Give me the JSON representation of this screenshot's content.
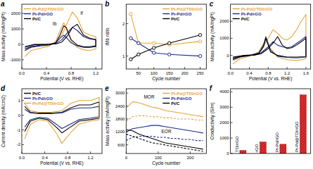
{
  "chart_data": [
    {
      "type": "line",
      "title": "a",
      "x_label": "Potential (V vs. RHE)",
      "y_label": "Mass activity (mA/mgPt)",
      "xlim": [
        0,
        1.3
      ],
      "xticks": [
        {
          "value": 0,
          "label": "0.0"
        },
        0.4,
        0.8,
        1.2
      ],
      "ylim": [
        -1600,
        2600
      ],
      "yticks": [
        -1000,
        0,
        1000,
        2000
      ],
      "legend": "upper left",
      "series": [
        {
          "name": "Pt-Pd@TDI/rGO",
          "color": "#e8a33a",
          "x": [
            0.05,
            0.2,
            0.4,
            0.55,
            0.65,
            0.75,
            0.82,
            0.9,
            1.0,
            1.1,
            1.2,
            1.2,
            1.1,
            1.0,
            0.9,
            0.8,
            0.72,
            0.68,
            0.62,
            0.55,
            0.45,
            0.3,
            0.15,
            0.05
          ],
          "values": [
            -400,
            -50,
            0,
            100,
            600,
            1500,
            2100,
            1700,
            800,
            600,
            500,
            -300,
            -400,
            -350,
            -200,
            200,
            1000,
            1400,
            900,
            200,
            -100,
            -250,
            -400,
            -800
          ]
        },
        {
          "name": "Pt-Pd/rGO",
          "color": "#1a2a8c",
          "x": [
            0.05,
            0.2,
            0.4,
            0.55,
            0.65,
            0.75,
            0.82,
            0.9,
            1.0,
            1.1,
            1.2,
            1.2,
            1.1,
            1.0,
            0.9,
            0.8,
            0.72,
            0.68,
            0.62,
            0.55,
            0.45,
            0.3,
            0.15,
            0.05
          ],
          "values": [
            -200,
            -20,
            0,
            50,
            300,
            800,
            1100,
            900,
            500,
            350,
            300,
            -150,
            -200,
            -200,
            -100,
            100,
            450,
            600,
            400,
            100,
            -50,
            -100,
            -200,
            -400
          ]
        },
        {
          "name": "Pt/C",
          "color": "#000000",
          "x": [
            0.05,
            0.2,
            0.4,
            0.55,
            0.65,
            0.75,
            0.82,
            0.9,
            1.0,
            1.1,
            1.2,
            1.2,
            1.1,
            1.0,
            0.9,
            0.8,
            0.72,
            0.68,
            0.62,
            0.55,
            0.45,
            0.3,
            0.15,
            0.05
          ],
          "values": [
            -150,
            0,
            0,
            20,
            150,
            600,
            1100,
            1300,
            600,
            400,
            300,
            -100,
            -150,
            -150,
            -50,
            300,
            1100,
            1200,
            600,
            100,
            0,
            -50,
            -150,
            -300
          ]
        }
      ],
      "annotations": [
        {
          "text": "If",
          "x": 0.95,
          "y": 1900
        },
        {
          "text": "Ib",
          "x": 0.5,
          "y": 1250
        }
      ]
    },
    {
      "type": "line",
      "title": "b",
      "x_label": "Cycle number",
      "y_label": "If/Ib ratio",
      "xlim": [
        10,
        270
      ],
      "xticks": [
        50,
        100,
        150,
        200,
        250
      ],
      "ylim": [
        0.6,
        2.6
      ],
      "yticks": [
        1,
        2
      ],
      "legend": "upper right",
      "marker": "circle",
      "series": [
        {
          "name": "Pt-Pd@TDI/rGO",
          "color": "#e8a33a",
          "x": [
            25,
            50,
            100,
            150,
            250
          ],
          "values": [
            2.3,
            1.4,
            1.4,
            1.35,
            1.45
          ]
        },
        {
          "name": "Pt-Pd/rGO",
          "color": "#1a2a8c",
          "x": [
            25,
            50,
            100,
            150,
            250
          ],
          "values": [
            1.55,
            1.4,
            1.1,
            1.05,
            1.0
          ]
        },
        {
          "name": "Pt/C",
          "color": "#000000",
          "x": [
            25,
            50,
            100,
            150,
            250
          ],
          "values": [
            0.9,
            1.05,
            1.25,
            1.4,
            1.65
          ]
        }
      ]
    },
    {
      "type": "line",
      "title": "c",
      "x_label": "Potential (V vs. RHE)",
      "y_label": "Mass activity (mA/mgPt)",
      "xlim": [
        0,
        1.7
      ],
      "xticks": [
        {
          "value": 0,
          "label": "0.0"
        },
        0.4,
        0.8,
        1.2,
        1.6
      ],
      "ylim": [
        -800,
        3000
      ],
      "yticks": [
        0,
        1000,
        2000
      ],
      "legend": "upper left",
      "series": [
        {
          "name": "Pt-Pd@TDI/rGO",
          "color": "#e8a33a",
          "x": [
            0.05,
            0.3,
            0.5,
            0.65,
            0.8,
            0.9,
            1.0,
            1.1,
            1.2,
            1.3,
            1.4,
            1.5,
            1.6,
            1.6,
            1.4,
            1.2,
            1.0,
            0.85,
            0.75,
            0.7,
            0.6,
            0.4,
            0.2,
            0.05
          ],
          "values": [
            -300,
            0,
            50,
            300,
            1000,
            1500,
            1300,
            1000,
            900,
            1100,
            1500,
            2000,
            2400,
            -200,
            -300,
            -250,
            -100,
            400,
            900,
            700,
            200,
            -50,
            -200,
            -500
          ]
        },
        {
          "name": "Pt-Pd/rGO",
          "color": "#1a2a8c",
          "x": [
            0.05,
            0.3,
            0.5,
            0.65,
            0.8,
            0.9,
            1.0,
            1.1,
            1.2,
            1.3,
            1.4,
            1.5,
            1.6,
            1.6,
            1.4,
            1.2,
            1.0,
            0.85,
            0.75,
            0.7,
            0.6,
            0.4,
            0.2,
            0.05
          ],
          "values": [
            -150,
            0,
            20,
            150,
            500,
            800,
            600,
            500,
            450,
            500,
            700,
            900,
            1100,
            -100,
            -150,
            -120,
            -50,
            300,
            1100,
            600,
            150,
            -20,
            -100,
            -250
          ]
        },
        {
          "name": "Pt/C",
          "color": "#000000",
          "x": [
            0.05,
            0.3,
            0.5,
            0.65,
            0.8,
            0.9,
            1.0,
            1.1,
            1.2,
            1.3,
            1.4,
            1.5,
            1.6,
            1.6,
            1.4,
            1.2,
            1.0,
            0.85,
            0.75,
            0.7,
            0.6,
            0.4,
            0.2,
            0.05
          ],
          "values": [
            -100,
            0,
            10,
            100,
            400,
            700,
            1100,
            600,
            400,
            450,
            600,
            800,
            1000,
            -80,
            -100,
            -100,
            0,
            200,
            1000,
            500,
            100,
            0,
            -80,
            -200
          ]
        }
      ]
    },
    {
      "type": "line",
      "title": "d",
      "x_label": "Potential (V vs. RHE)",
      "y_label": "Current density (mA/cm2)",
      "xlim": [
        0,
        1.4
      ],
      "xticks": [
        {
          "value": 0,
          "label": "0.0"
        },
        0.4,
        0.8,
        1.2
      ],
      "ylim": [
        -2.6,
        1.8
      ],
      "yticks": [
        -2,
        -1,
        0,
        1
      ],
      "legend": "upper left",
      "series": [
        {
          "name": "Pt/C",
          "color": "#000000",
          "x": [
            0.05,
            0.15,
            0.3,
            0.5,
            0.7,
            0.85,
            1.0,
            1.2,
            1.35,
            1.35,
            1.2,
            1.0,
            0.85,
            0.7,
            0.6,
            0.45,
            0.3,
            0.15,
            0.05
          ],
          "values": [
            0.6,
            0.2,
            0.15,
            0.15,
            0.2,
            0.5,
            0.7,
            0.7,
            0.9,
            -0.2,
            -0.3,
            -0.4,
            -0.8,
            -1.2,
            -0.8,
            -0.3,
            -0.2,
            -0.4,
            -1.1
          ]
        },
        {
          "name": "Pt-Pd/rGO",
          "color": "#1a2a8c",
          "x": [
            0.05,
            0.15,
            0.3,
            0.5,
            0.7,
            0.85,
            1.0,
            1.2,
            1.35,
            1.35,
            1.2,
            1.0,
            0.85,
            0.7,
            0.6,
            0.45,
            0.3,
            0.15,
            0.05
          ],
          "values": [
            0.4,
            0.15,
            0.1,
            0.1,
            0.15,
            0.4,
            0.5,
            0.5,
            0.6,
            -0.1,
            -0.2,
            -0.3,
            -0.6,
            -0.9,
            -0.6,
            -0.2,
            -0.15,
            -0.3,
            -0.8
          ]
        },
        {
          "name": "Pt-Pd@TDI/rGO",
          "color": "#e8a33a",
          "x": [
            0.05,
            0.15,
            0.3,
            0.5,
            0.7,
            0.85,
            1.0,
            1.2,
            1.35,
            1.35,
            1.2,
            1.0,
            0.85,
            0.7,
            0.6,
            0.45,
            0.3,
            0.15,
            0.05
          ],
          "values": [
            0.8,
            0.3,
            0.2,
            0.2,
            0.3,
            0.8,
            1.0,
            1.0,
            1.2,
            -0.3,
            -0.4,
            -0.6,
            -1.2,
            -1.9,
            -1.2,
            -0.4,
            -0.3,
            -0.6,
            -1.6
          ]
        }
      ]
    },
    {
      "type": "line",
      "title": "e",
      "x_label": "Cycle number",
      "y_label": "Mass activity (mA/mgPt)",
      "xlim": [
        0,
        250
      ],
      "xticks": [
        0,
        100,
        200
      ],
      "ylim": [
        200,
        3200
      ],
      "yticks": [
        600,
        1200,
        1800,
        2400,
        3000
      ],
      "legend": "upper right",
      "series": [
        {
          "name": "Pt-Pd@TDI/rGO",
          "color": "#e8a33a",
          "line_style": "solid",
          "x": [
            0,
            20,
            40,
            60,
            80,
            100,
            120,
            140,
            160,
            180,
            200,
            220,
            240
          ],
          "values": [
            2300,
            2600,
            2550,
            2450,
            2350,
            2300,
            2200,
            2150,
            2100,
            2050,
            2000,
            1950,
            1900
          ]
        },
        {
          "name": "Pt-Pd/rGO",
          "color": "#1a2a8c",
          "line_style": "solid",
          "x": [
            0,
            20,
            40,
            60,
            80,
            100,
            120,
            140,
            160,
            180,
            200,
            220,
            240
          ],
          "values": [
            1200,
            1350,
            1400,
            1450,
            1500,
            1500,
            1450,
            1400,
            1350,
            1300,
            1250,
            1200,
            1150
          ]
        },
        {
          "name": "Pt/C",
          "color": "#000000",
          "line_style": "solid",
          "x": [
            0,
            20,
            40,
            60,
            80,
            100,
            120,
            140,
            160,
            180,
            200,
            220,
            240
          ],
          "values": [
            1300,
            1250,
            1100,
            1000,
            900,
            800,
            700,
            650,
            600,
            550,
            500,
            450,
            400
          ]
        },
        {
          "name": "Pt-Pd@TDI/rGO",
          "color": "#e8a33a",
          "line_style": "dashed",
          "x": [
            0,
            20,
            40,
            60,
            80,
            100,
            120,
            140,
            160,
            180,
            200,
            220,
            240
          ],
          "values": [
            1700,
            1900,
            1950,
            1950,
            1900,
            1900,
            1850,
            1850,
            1800,
            1800,
            1800,
            1750,
            1750
          ]
        },
        {
          "name": "Pt-Pd/rGO",
          "color": "#1a2a8c",
          "line_style": "dashed",
          "x": [
            0,
            20,
            40,
            60,
            80,
            100,
            120,
            140,
            160,
            180,
            200,
            220,
            240
          ],
          "values": [
            800,
            950,
            1000,
            1000,
            1000,
            950,
            950,
            900,
            900,
            850,
            850,
            800,
            800
          ]
        },
        {
          "name": "Pt/C",
          "color": "#000000",
          "line_style": "dashed",
          "x": [
            0,
            20,
            40,
            60,
            80,
            100,
            120,
            140,
            160,
            180,
            200,
            220,
            240
          ],
          "values": [
            1100,
            1000,
            900,
            800,
            700,
            650,
            600,
            550,
            500,
            450,
            400,
            350,
            300
          ]
        }
      ],
      "annotations": [
        {
          "text": "MOR",
          "x": 55,
          "y": 2750
        },
        {
          "text": "EOR",
          "x": 110,
          "y": 1130
        }
      ]
    },
    {
      "type": "bar",
      "title": "f",
      "y_label": "Conductivity (S/m)",
      "categories": [
        "TDI/rGO",
        "rGO",
        "Pt-Pd/rGO",
        "Pt-Pd@TDI/rGO"
      ],
      "values": [
        200,
        750,
        600,
        3800
      ],
      "color": "#e03030",
      "ylim": [
        0,
        4200
      ],
      "yticks": [
        0,
        1000,
        2000,
        3000,
        4000
      ]
    }
  ]
}
